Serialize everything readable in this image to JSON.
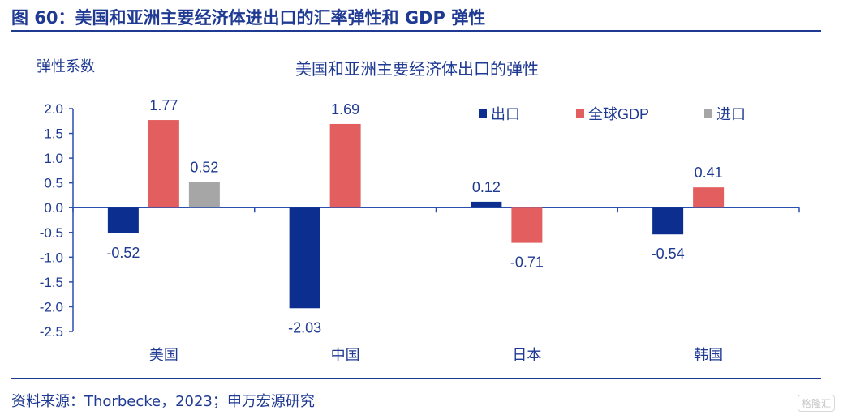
{
  "figure": {
    "title": "图 60：美国和亚洲主要经济体进出口的汇率弹性和 GDP 弹性",
    "source": "资料来源：Thorbecke，2023；申万宏源研究",
    "watermark": "格隆汇"
  },
  "chart_data": {
    "type": "bar",
    "title": "美国和亚洲主要经济体出口的弹性",
    "ylabel": "弹性系数",
    "xlabel": "",
    "ylim": [
      -2.5,
      2.0
    ],
    "yticks": [
      2.0,
      1.5,
      1.0,
      0.5,
      0.0,
      -0.5,
      -1.0,
      -1.5,
      -2.0,
      -2.5
    ],
    "ytick_labels": [
      "2.0",
      "1.5",
      "1.0",
      "0.5",
      "0.0",
      "-0.5",
      "-1.0",
      "-1.5",
      "-2.0",
      "-2.5"
    ],
    "grid": false,
    "legend_position": "top-right",
    "categories": [
      "美国",
      "中国",
      "日本",
      "韩国"
    ],
    "series": [
      {
        "name": "出口",
        "color": "#0b2e8f",
        "values": [
          -0.52,
          -2.03,
          0.12,
          -0.54
        ],
        "labels": [
          "-0.52",
          "-2.03",
          "0.12",
          "-0.54"
        ]
      },
      {
        "name": "全球GDP",
        "color": "#e35f5f",
        "values": [
          1.77,
          1.69,
          -0.71,
          0.41
        ],
        "labels": [
          "1.77",
          "1.69",
          "-0.71",
          "0.41"
        ]
      },
      {
        "name": "进口",
        "color": "#a6a6a6",
        "values": [
          0.52,
          null,
          null,
          null
        ],
        "labels": [
          "0.52",
          "",
          "",
          ""
        ]
      }
    ]
  }
}
